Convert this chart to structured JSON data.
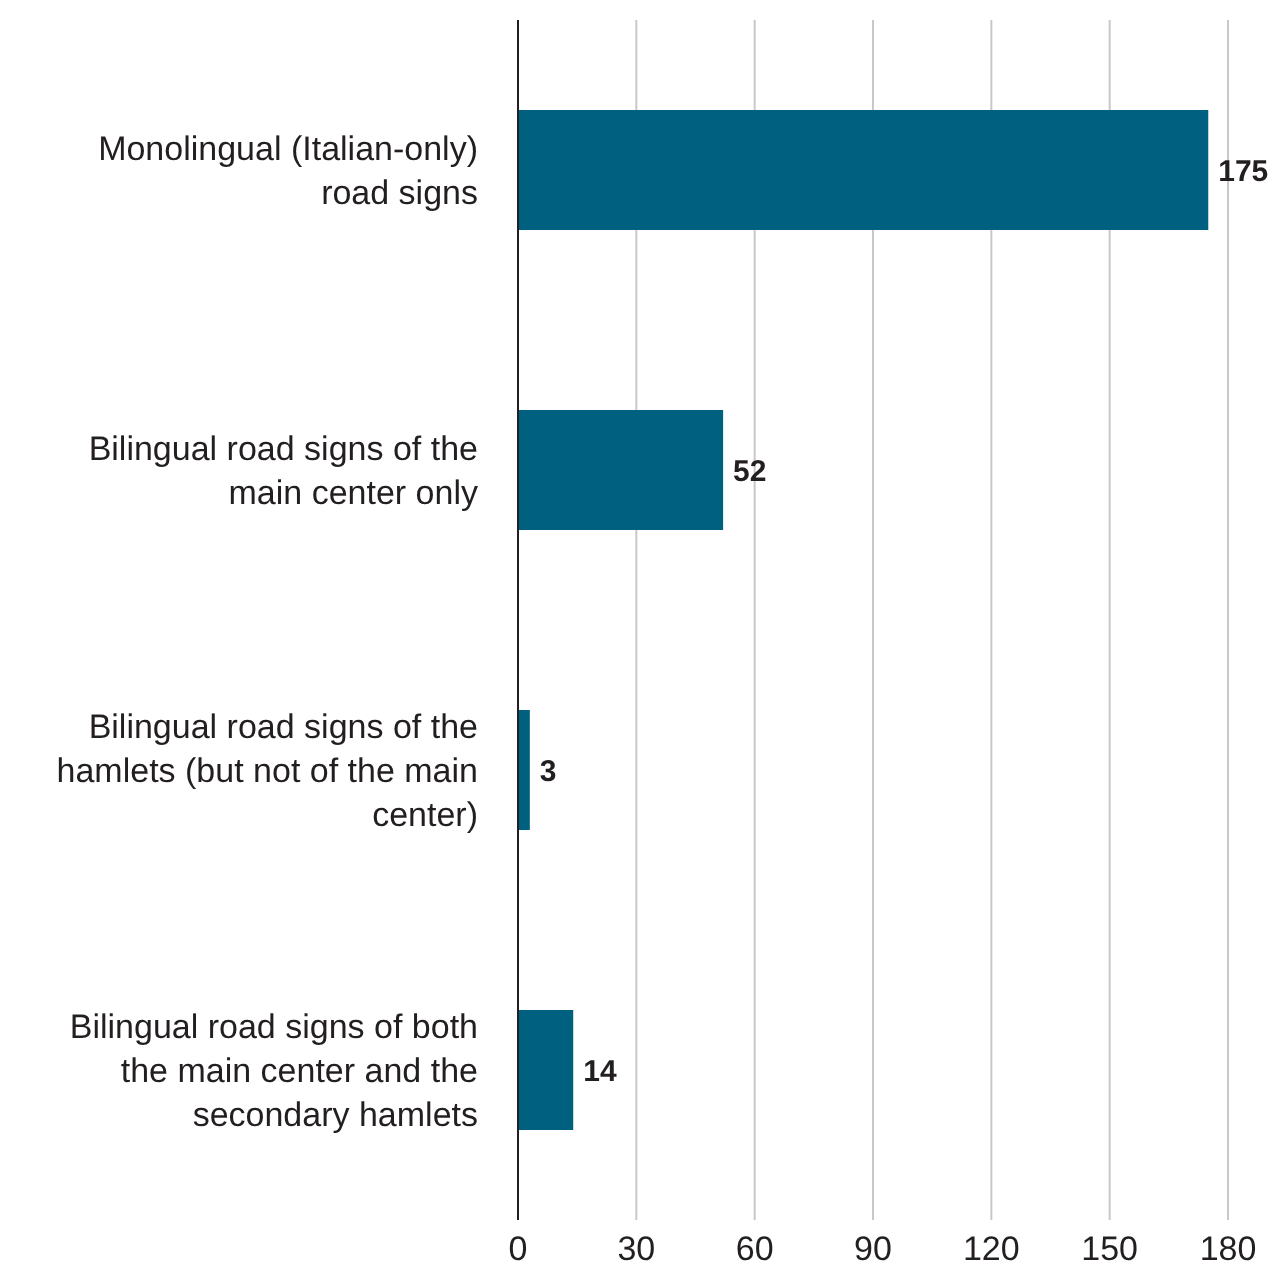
{
  "chart_data": {
    "type": "bar",
    "orientation": "horizontal",
    "categories": [
      "Monolingual (Italian-only) road signs",
      "Bilingual road signs of the main center only",
      "Bilingual road signs of the hamlets (but not of the main center)",
      "Bilingual road signs of both the main center and the secondary hamlets"
    ],
    "values": [
      175,
      52,
      3,
      14
    ],
    "color": "#006080",
    "xlim": [
      0,
      180
    ],
    "xticks": [
      0,
      30,
      60,
      90,
      120,
      150,
      180
    ],
    "grid": "x",
    "data_labels": true
  }
}
